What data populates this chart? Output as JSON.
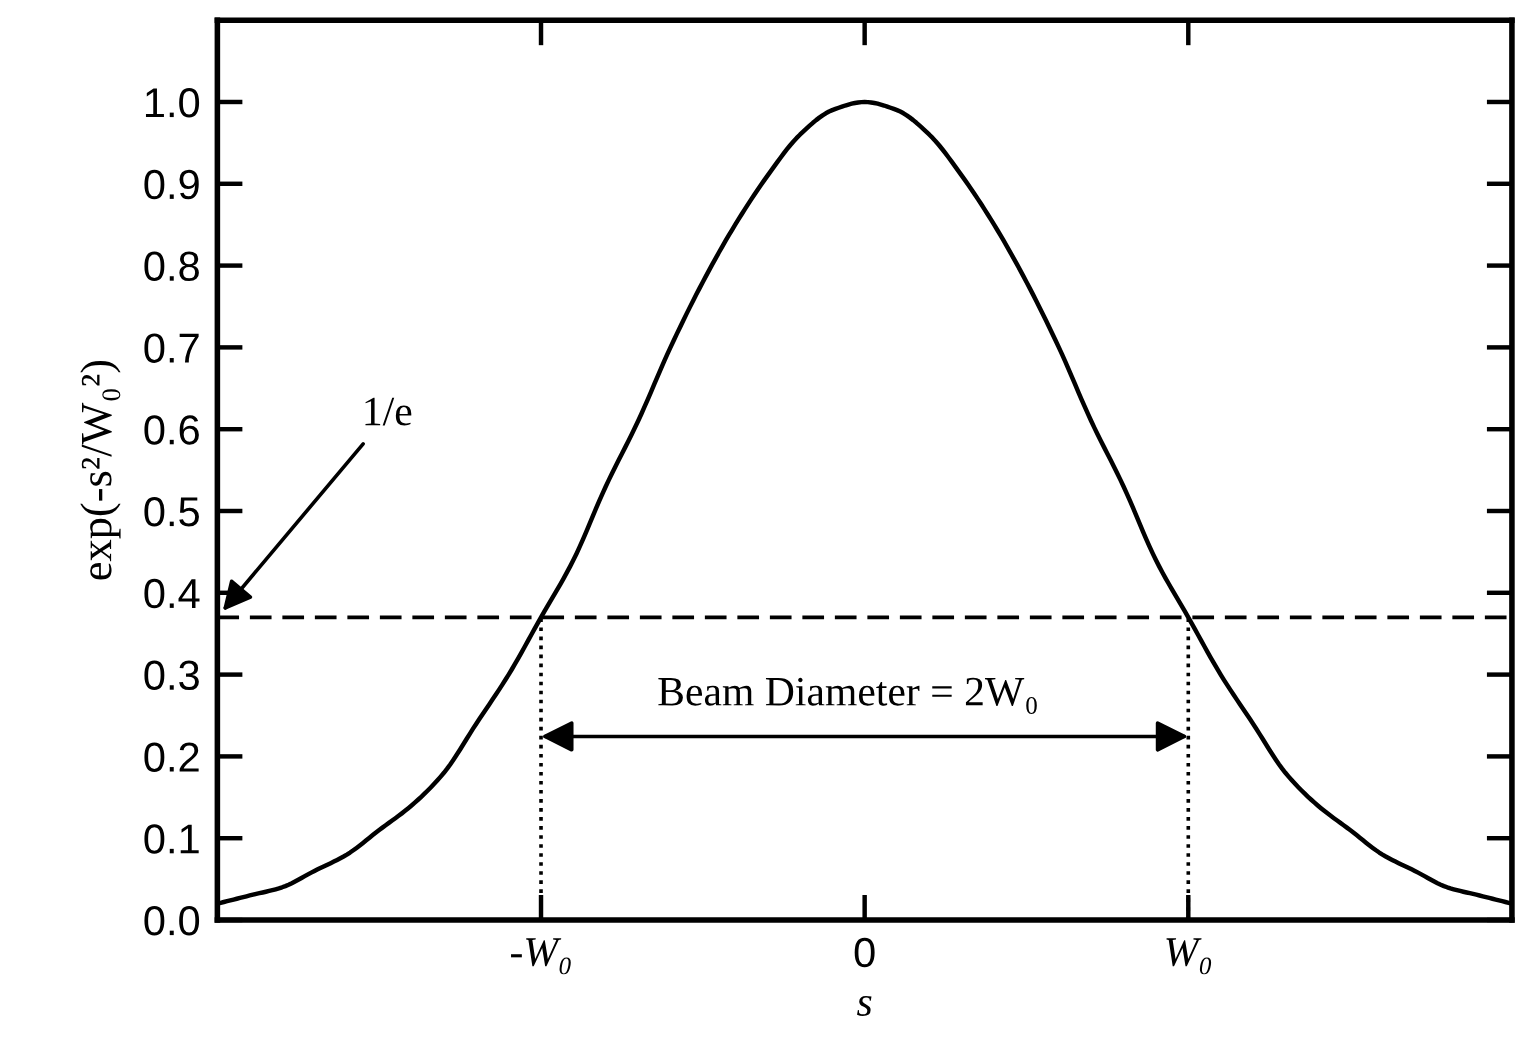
{
  "chart_data": {
    "type": "line",
    "xlabel": "s",
    "ylabel": "exp(-s²/W₀²)",
    "categories": [
      null,
      null,
      null,
      null,
      null,
      null,
      null,
      null,
      null,
      null,
      "-W₀",
      null,
      null,
      null,
      null,
      null,
      null,
      null,
      null,
      null,
      "0",
      null,
      null,
      null,
      null,
      null,
      null,
      null,
      null,
      null,
      "W₀",
      null,
      null,
      null,
      null,
      null,
      null,
      null,
      null,
      null,
      null
    ],
    "ylim": [
      0,
      1.1
    ],
    "yticks": [
      {
        "value": 0,
        "label": "0.0"
      },
      0.1,
      0.2,
      0.3,
      0.4,
      0.5,
      0.6,
      0.7,
      0.8,
      0.9,
      {
        "value": 1,
        "label": "1.0"
      }
    ],
    "series": [
      {
        "color": "#000000",
        "line_style": "solid",
        "values": [
          0.02,
          0.03,
          0.04,
          0.06,
          0.08,
          0.11,
          0.14,
          0.18,
          0.24,
          0.3,
          0.37,
          0.44,
          0.53,
          0.61,
          0.7,
          0.78,
          0.85,
          0.91,
          0.96,
          0.99,
          1.0,
          0.99,
          0.96,
          0.91,
          0.85,
          0.78,
          0.7,
          0.61,
          0.53,
          0.44,
          0.37,
          0.3,
          0.24,
          0.18,
          0.14,
          0.11,
          0.08,
          0.06,
          0.04,
          0.03,
          0.02
        ]
      },
      {
        "color": "#000000",
        "line_style": "dotted",
        "x": [
          "-W₀",
          "-W₀"
        ],
        "values": [
          0,
          0.37
        ]
      },
      {
        "color": "#000000",
        "line_style": "dotted",
        "x": [
          "W₀",
          "W₀"
        ],
        "values": [
          0,
          0.37
        ]
      }
    ],
    "ref_lines": [
      {
        "axis": "y",
        "value": 0.37,
        "label": "1/e",
        "color": "#000000",
        "line_style": "dashed"
      }
    ],
    "annotations": [
      "Beam Diameter = 2W₀"
    ]
  }
}
